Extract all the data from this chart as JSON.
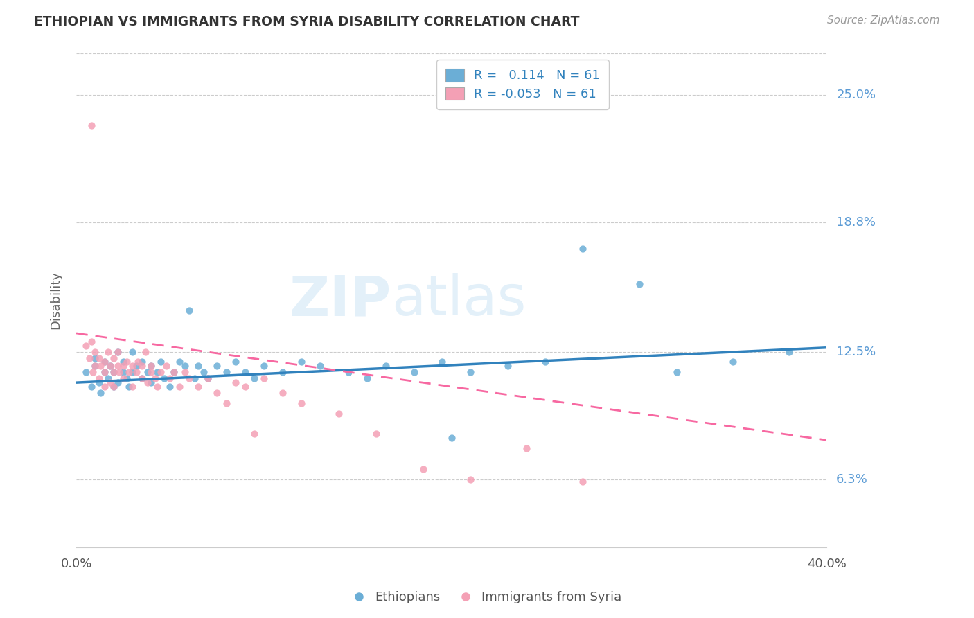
{
  "title": "ETHIOPIAN VS IMMIGRANTS FROM SYRIA DISABILITY CORRELATION CHART",
  "source": "Source: ZipAtlas.com",
  "ylabel": "Disability",
  "y_ticks": [
    0.063,
    0.125,
    0.188,
    0.25
  ],
  "y_tick_labels": [
    "6.3%",
    "12.5%",
    "18.8%",
    "25.0%"
  ],
  "x_lim": [
    0.0,
    0.4
  ],
  "y_lim": [
    0.03,
    0.27
  ],
  "r_ethiopian": 0.114,
  "r_syria": -0.053,
  "n_ethiopian": 61,
  "n_syria": 61,
  "blue_color": "#6baed6",
  "pink_color": "#f4a0b5",
  "blue_line_color": "#3182bd",
  "pink_line_color": "#f768a1",
  "watermark_zip": "ZIP",
  "watermark_atlas": "atlas",
  "legend_label_1": "Ethiopians",
  "legend_label_2": "Immigrants from Syria",
  "eth_line_x0": 0.0,
  "eth_line_y0": 0.11,
  "eth_line_x1": 0.4,
  "eth_line_y1": 0.127,
  "syr_line_x0": 0.0,
  "syr_line_y0": 0.134,
  "syr_line_x1": 0.4,
  "syr_line_y1": 0.082,
  "ethiopian_x": [
    0.005,
    0.008,
    0.01,
    0.01,
    0.012,
    0.013,
    0.015,
    0.015,
    0.017,
    0.018,
    0.02,
    0.02,
    0.022,
    0.022,
    0.025,
    0.025,
    0.027,
    0.028,
    0.03,
    0.03,
    0.032,
    0.035,
    0.035,
    0.038,
    0.04,
    0.04,
    0.043,
    0.045,
    0.047,
    0.05,
    0.052,
    0.055,
    0.058,
    0.06,
    0.063,
    0.065,
    0.068,
    0.07,
    0.075,
    0.08,
    0.085,
    0.09,
    0.095,
    0.1,
    0.11,
    0.12,
    0.13,
    0.145,
    0.155,
    0.165,
    0.18,
    0.195,
    0.21,
    0.23,
    0.25,
    0.27,
    0.3,
    0.32,
    0.35,
    0.38,
    0.2
  ],
  "ethiopian_y": [
    0.115,
    0.108,
    0.118,
    0.122,
    0.11,
    0.105,
    0.115,
    0.12,
    0.112,
    0.118,
    0.115,
    0.108,
    0.125,
    0.11,
    0.115,
    0.12,
    0.112,
    0.108,
    0.115,
    0.125,
    0.118,
    0.112,
    0.12,
    0.115,
    0.118,
    0.11,
    0.115,
    0.12,
    0.112,
    0.108,
    0.115,
    0.12,
    0.118,
    0.145,
    0.112,
    0.118,
    0.115,
    0.112,
    0.118,
    0.115,
    0.12,
    0.115,
    0.112,
    0.118,
    0.115,
    0.12,
    0.118,
    0.115,
    0.112,
    0.118,
    0.115,
    0.12,
    0.115,
    0.118,
    0.12,
    0.175,
    0.158,
    0.115,
    0.12,
    0.125,
    0.083
  ],
  "syria_x": [
    0.005,
    0.007,
    0.008,
    0.009,
    0.01,
    0.01,
    0.012,
    0.012,
    0.013,
    0.015,
    0.015,
    0.015,
    0.017,
    0.018,
    0.018,
    0.02,
    0.02,
    0.02,
    0.022,
    0.022,
    0.023,
    0.025,
    0.025,
    0.027,
    0.028,
    0.03,
    0.03,
    0.032,
    0.033,
    0.035,
    0.035,
    0.037,
    0.038,
    0.04,
    0.04,
    0.042,
    0.043,
    0.045,
    0.048,
    0.05,
    0.052,
    0.055,
    0.058,
    0.06,
    0.065,
    0.07,
    0.075,
    0.08,
    0.085,
    0.09,
    0.095,
    0.1,
    0.11,
    0.12,
    0.14,
    0.16,
    0.185,
    0.21,
    0.24,
    0.27,
    0.008
  ],
  "syria_y": [
    0.128,
    0.122,
    0.13,
    0.115,
    0.118,
    0.125,
    0.122,
    0.112,
    0.118,
    0.12,
    0.108,
    0.115,
    0.125,
    0.118,
    0.11,
    0.122,
    0.115,
    0.108,
    0.118,
    0.125,
    0.115,
    0.118,
    0.112,
    0.12,
    0.115,
    0.118,
    0.108,
    0.115,
    0.12,
    0.112,
    0.118,
    0.125,
    0.11,
    0.115,
    0.118,
    0.112,
    0.108,
    0.115,
    0.118,
    0.112,
    0.115,
    0.108,
    0.115,
    0.112,
    0.108,
    0.112,
    0.105,
    0.1,
    0.11,
    0.108,
    0.085,
    0.112,
    0.105,
    0.1,
    0.095,
    0.085,
    0.068,
    0.063,
    0.078,
    0.062,
    0.235
  ]
}
